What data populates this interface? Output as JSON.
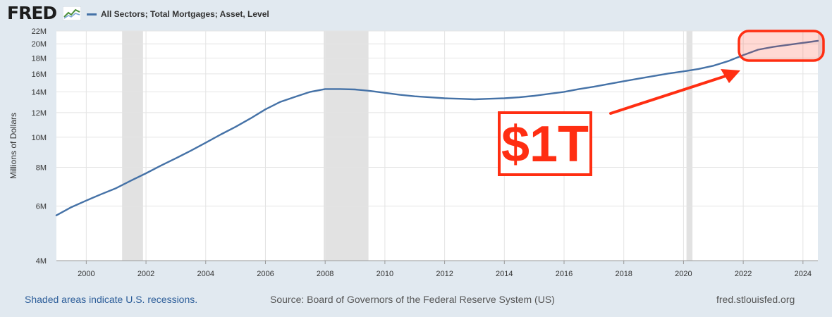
{
  "header": {
    "logo_text": "FRED",
    "logo_icon": "line-chart-icon",
    "legend_label": "All Sectors; Total Mortgages; Asset, Level",
    "legend_color": "#4572a7"
  },
  "footer": {
    "recession_note": "Shaded areas indicate U.S. recessions.",
    "source": "Source: Board of Governors of the Federal Reserve System (US)",
    "site": "fred.stlouisfed.org"
  },
  "annotation": {
    "text": "$1T",
    "color": "#ff2e12"
  },
  "chart_data": {
    "type": "line",
    "title": "",
    "xlabel": "",
    "ylabel": "Millions of Dollars",
    "y_scale": "log",
    "ylim": [
      4000000,
      22000000
    ],
    "xlim": [
      1999.0,
      2024.5
    ],
    "y_ticks": [
      {
        "value": 4000000,
        "label": "4M"
      },
      {
        "value": 6000000,
        "label": "6M"
      },
      {
        "value": 8000000,
        "label": "8M"
      },
      {
        "value": 10000000,
        "label": "10M"
      },
      {
        "value": 12000000,
        "label": "12M"
      },
      {
        "value": 14000000,
        "label": "14M"
      },
      {
        "value": 16000000,
        "label": "16M"
      },
      {
        "value": 18000000,
        "label": "18M"
      },
      {
        "value": 20000000,
        "label": "20M"
      },
      {
        "value": 22000000,
        "label": "22M"
      }
    ],
    "x_ticks": [
      {
        "value": 2000,
        "label": "2000"
      },
      {
        "value": 2002,
        "label": "2002"
      },
      {
        "value": 2004,
        "label": "2004"
      },
      {
        "value": 2006,
        "label": "2006"
      },
      {
        "value": 2008,
        "label": "2008"
      },
      {
        "value": 2010,
        "label": "2010"
      },
      {
        "value": 2012,
        "label": "2012"
      },
      {
        "value": 2014,
        "label": "2014"
      },
      {
        "value": 2016,
        "label": "2016"
      },
      {
        "value": 2018,
        "label": "2018"
      },
      {
        "value": 2020,
        "label": "2020"
      },
      {
        "value": 2022,
        "label": "2022"
      },
      {
        "value": 2024,
        "label": "2024"
      }
    ],
    "recessions": [
      [
        2001.2,
        2001.9
      ],
      [
        2007.95,
        2009.45
      ],
      [
        2020.1,
        2020.3
      ]
    ],
    "grid": true,
    "series": [
      {
        "name": "All Sectors; Total Mortgages; Asset, Level",
        "color": "#4572a7",
        "x": [
          1999.0,
          1999.5,
          2000.0,
          2000.5,
          2001.0,
          2001.5,
          2002.0,
          2002.5,
          2003.0,
          2003.5,
          2004.0,
          2004.5,
          2005.0,
          2005.5,
          2006.0,
          2006.5,
          2007.0,
          2007.5,
          2008.0,
          2008.5,
          2009.0,
          2009.5,
          2010.0,
          2010.5,
          2011.0,
          2011.5,
          2012.0,
          2012.5,
          2013.0,
          2013.5,
          2014.0,
          2014.5,
          2015.0,
          2015.5,
          2016.0,
          2016.5,
          2017.0,
          2017.5,
          2018.0,
          2018.5,
          2019.0,
          2019.5,
          2020.0,
          2020.5,
          2021.0,
          2021.5,
          2022.0,
          2022.5,
          2023.0,
          2023.5,
          2024.0,
          2024.5
        ],
        "y": [
          5600000,
          5950000,
          6250000,
          6550000,
          6850000,
          7250000,
          7650000,
          8100000,
          8550000,
          9050000,
          9600000,
          10200000,
          10800000,
          11500000,
          12300000,
          13000000,
          13500000,
          14000000,
          14300000,
          14300000,
          14250000,
          14100000,
          13900000,
          13700000,
          13550000,
          13450000,
          13350000,
          13300000,
          13250000,
          13300000,
          13350000,
          13450000,
          13600000,
          13800000,
          14000000,
          14300000,
          14550000,
          14850000,
          15150000,
          15450000,
          15750000,
          16050000,
          16300000,
          16600000,
          17000000,
          17600000,
          18400000,
          19150000,
          19550000,
          19850000,
          20150000,
          20450000
        ]
      }
    ]
  }
}
